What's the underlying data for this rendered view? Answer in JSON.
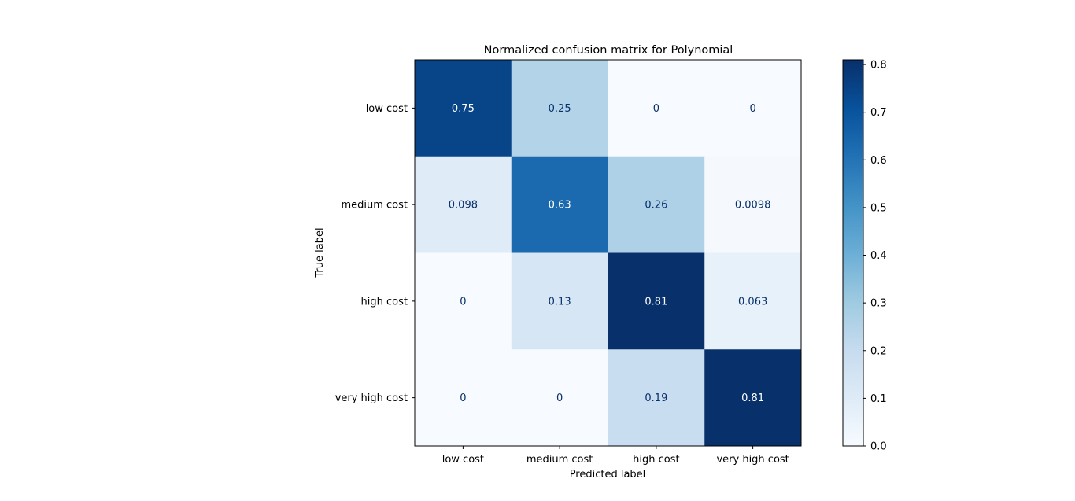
{
  "chart_data": {
    "type": "heatmap",
    "title": "Normalized confusion matrix for Polynomial",
    "xlabel": "Predicted label",
    "ylabel": "True label",
    "x_categories": [
      "low cost",
      "medium cost",
      "high cost",
      "very high cost"
    ],
    "y_categories": [
      "low cost",
      "medium cost",
      "high cost",
      "very high cost"
    ],
    "values": [
      [
        0.75,
        0.25,
        0,
        0
      ],
      [
        0.098,
        0.63,
        0.26,
        0.0098
      ],
      [
        0,
        0.13,
        0.81,
        0.063
      ],
      [
        0,
        0,
        0.19,
        0.81
      ]
    ],
    "value_labels": [
      [
        "0.75",
        "0.25",
        "0",
        "0"
      ],
      [
        "0.098",
        "0.63",
        "0.26",
        "0.0098"
      ],
      [
        "0",
        "0.13",
        "0.81",
        "0.063"
      ],
      [
        "0",
        "0",
        "0.19",
        "0.81"
      ]
    ],
    "colormap": "Blues",
    "colormap_stops": [
      "#f7fbff",
      "#deebf7",
      "#c6dbef",
      "#9ecae1",
      "#6baed6",
      "#4292c6",
      "#2171b5",
      "#08519c",
      "#08306b"
    ],
    "text_color_light_cells": "#08306b",
    "text_color_dark_cells": "#ffffff",
    "colorbar": {
      "range": [
        0,
        0.81
      ],
      "ticks": [
        0.0,
        0.1,
        0.2,
        0.3,
        0.4,
        0.5,
        0.6,
        0.7,
        0.8
      ],
      "tick_labels": [
        "0.0",
        "0.1",
        "0.2",
        "0.3",
        "0.4",
        "0.5",
        "0.6",
        "0.7",
        "0.8"
      ]
    },
    "grid": false
  }
}
